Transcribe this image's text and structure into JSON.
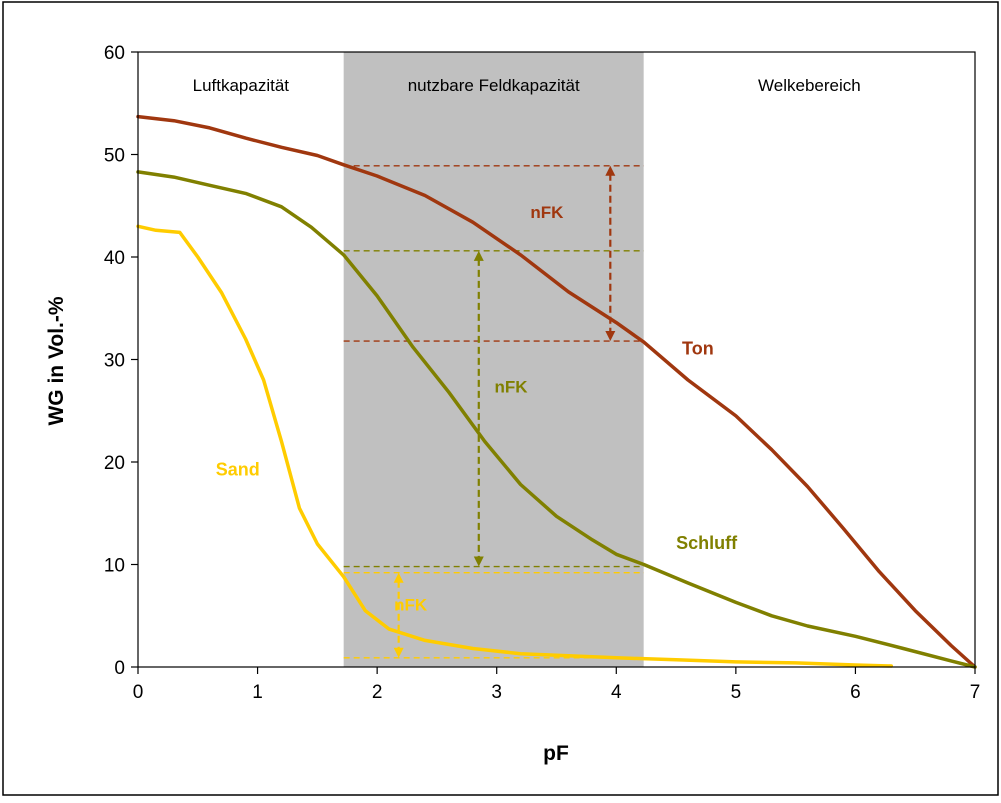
{
  "chart_data": {
    "type": "line",
    "xlabel": "pF",
    "ylabel": "WG in Vol.-%",
    "xlim": [
      0,
      7
    ],
    "ylim": [
      0,
      60
    ],
    "x_ticks": [
      0,
      1,
      2,
      3,
      4,
      5,
      6,
      7
    ],
    "y_ticks": [
      0,
      10,
      20,
      30,
      40,
      50,
      60
    ],
    "grid": false,
    "regions": [
      {
        "label": "Luftkapazität",
        "x_from": 0,
        "x_to": 1.72,
        "color": "#ffffff"
      },
      {
        "label": "nutzbare Feldkapazität",
        "x_from": 1.72,
        "x_to": 4.23,
        "color": "#c0c0c0"
      },
      {
        "label": "Welkebereich",
        "x_from": 4.23,
        "x_to": 7,
        "color": "#ffffff"
      }
    ],
    "series": [
      {
        "name": "Ton",
        "color": "#a0370f",
        "x": [
          0,
          0.3,
          0.6,
          0.9,
          1.2,
          1.5,
          1.72,
          2.0,
          2.4,
          2.8,
          3.2,
          3.6,
          4.0,
          4.23,
          4.6,
          5.0,
          5.3,
          5.6,
          5.9,
          6.2,
          6.5,
          6.8,
          7.0
        ],
        "y": [
          53.7,
          53.3,
          52.6,
          51.6,
          50.7,
          49.9,
          49.0,
          47.9,
          46.0,
          43.4,
          40.2,
          36.6,
          33.6,
          31.7,
          28.0,
          24.5,
          21.2,
          17.6,
          13.5,
          9.3,
          5.5,
          2.1,
          0
        ]
      },
      {
        "name": "Schluff",
        "color": "#808000",
        "x": [
          0,
          0.3,
          0.6,
          0.9,
          1.2,
          1.45,
          1.72,
          2.0,
          2.3,
          2.6,
          2.9,
          3.2,
          3.5,
          3.8,
          4.0,
          4.23,
          4.6,
          5.0,
          5.3,
          5.6,
          6.0,
          6.4,
          6.8,
          7.0
        ],
        "y": [
          48.3,
          47.8,
          47.0,
          46.2,
          44.9,
          42.9,
          40.2,
          36.2,
          31.2,
          26.8,
          22.0,
          17.8,
          14.7,
          12.4,
          11.0,
          10.0,
          8.2,
          6.3,
          5.0,
          4.0,
          3.0,
          1.8,
          0.6,
          0
        ]
      },
      {
        "name": "Sand",
        "color": "#ffcc00",
        "x": [
          0,
          0.15,
          0.35,
          0.5,
          0.7,
          0.9,
          1.05,
          1.2,
          1.35,
          1.5,
          1.72,
          1.9,
          2.1,
          2.4,
          2.8,
          3.2,
          3.6,
          4.0,
          4.5,
          5.0,
          5.5,
          6.0,
          6.3
        ],
        "y": [
          43.0,
          42.6,
          42.4,
          40.0,
          36.5,
          32.0,
          28.0,
          22.0,
          15.5,
          12.0,
          8.8,
          5.5,
          3.7,
          2.6,
          1.8,
          1.3,
          1.1,
          0.9,
          0.7,
          0.5,
          0.4,
          0.2,
          0.1
        ]
      }
    ],
    "nfk_markers": [
      {
        "label": "nFK",
        "color": "#a0370f",
        "x_from": 1.72,
        "x_to": 4.23,
        "y_top": 48.9,
        "y_bottom": 31.8,
        "arrow_x": 3.95,
        "label_x": 3.42,
        "label_y": 43.8
      },
      {
        "label": "nFK",
        "color": "#808000",
        "x_from": 1.72,
        "x_to": 4.23,
        "y_top": 40.6,
        "y_bottom": 9.8,
        "arrow_x": 2.85,
        "label_x": 3.12,
        "label_y": 26.8
      },
      {
        "label": "nFK",
        "color": "#ffcc00",
        "x_from": 1.72,
        "x_to": 4.23,
        "y_top": 9.2,
        "y_bottom": 0.9,
        "arrow_x": 2.18,
        "label_x": 2.28,
        "label_y": 5.5
      }
    ],
    "series_labels": [
      {
        "series": "Ton",
        "text": "Ton",
        "x": 4.55,
        "y": 30.5
      },
      {
        "series": "Schluff",
        "text": "Schluff",
        "x": 4.5,
        "y": 11.5
      },
      {
        "series": "Sand",
        "text": "Sand",
        "x": 0.65,
        "y": 18.7
      }
    ]
  }
}
